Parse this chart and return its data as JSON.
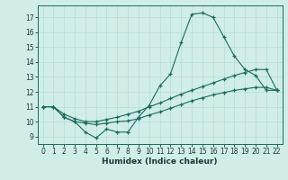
{
  "line1_x": [
    0,
    1,
    2,
    3,
    4,
    5,
    6,
    7,
    8,
    9,
    10,
    11,
    12,
    13,
    14,
    15,
    16,
    17,
    18,
    19,
    20,
    21,
    22
  ],
  "line1_y": [
    11.0,
    11.0,
    10.3,
    10.0,
    9.3,
    8.9,
    9.5,
    9.3,
    9.3,
    10.3,
    11.1,
    12.4,
    13.2,
    15.3,
    17.2,
    17.3,
    17.0,
    15.7,
    14.4,
    13.5,
    13.1,
    12.1,
    12.1
  ],
  "line2_x": [
    0,
    1,
    2,
    3,
    4,
    5,
    6,
    7,
    8,
    9,
    10,
    11,
    12,
    13,
    14,
    15,
    16,
    17,
    18,
    19,
    20,
    21,
    22
  ],
  "line2_y": [
    11.0,
    11.0,
    10.5,
    10.2,
    10.0,
    10.0,
    10.15,
    10.3,
    10.5,
    10.7,
    11.0,
    11.25,
    11.55,
    11.85,
    12.1,
    12.35,
    12.6,
    12.85,
    13.1,
    13.3,
    13.5,
    13.5,
    12.1
  ],
  "line3_x": [
    0,
    1,
    2,
    3,
    4,
    5,
    6,
    7,
    8,
    9,
    10,
    11,
    12,
    13,
    14,
    15,
    16,
    17,
    18,
    19,
    20,
    21,
    22
  ],
  "line3_y": [
    11.0,
    11.0,
    10.3,
    10.0,
    9.9,
    9.8,
    9.9,
    10.0,
    10.05,
    10.2,
    10.45,
    10.65,
    10.9,
    11.15,
    11.4,
    11.6,
    11.8,
    11.95,
    12.1,
    12.2,
    12.3,
    12.3,
    12.1
  ],
  "color": "#1a6b5a",
  "bg_color": "#d0ede8",
  "grid_color": "#b8ddd7",
  "xlabel": "Humidex (Indice chaleur)",
  "ylim": [
    8.5,
    17.8
  ],
  "xlim": [
    -0.5,
    22.5
  ],
  "yticks": [
    9,
    10,
    11,
    12,
    13,
    14,
    15,
    16,
    17
  ],
  "xticks": [
    0,
    1,
    2,
    3,
    4,
    5,
    6,
    7,
    8,
    9,
    10,
    11,
    12,
    13,
    14,
    15,
    16,
    17,
    18,
    19,
    20,
    21,
    22
  ]
}
